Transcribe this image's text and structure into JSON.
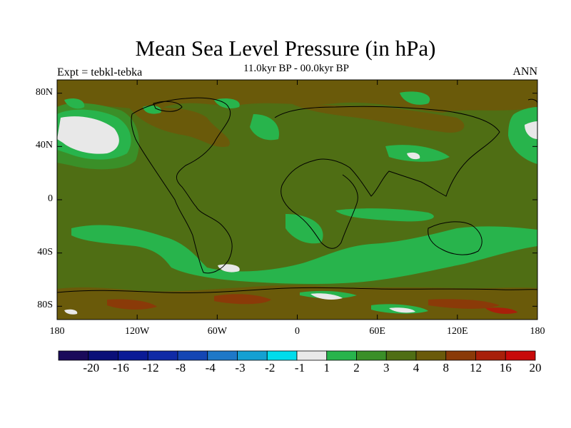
{
  "title": "Mean Sea Level Pressure (in hPa)",
  "subtitle": "11.0kyr BP - 00.0kyr BP",
  "left_label": "Expt = tebkl-tebka",
  "right_label": "ANN",
  "map": {
    "lat_ticks": [
      "80N",
      "40N",
      "0",
      "40S",
      "80S"
    ],
    "lat_values": [
      80,
      40,
      0,
      -40,
      -80
    ],
    "lon_ticks": [
      "180",
      "120W",
      "60W",
      "0",
      "60E",
      "120E",
      "180"
    ],
    "lon_values": [
      -180,
      -120,
      -60,
      0,
      60,
      120,
      180
    ],
    "lat_range": [
      -90,
      90
    ],
    "lon_range": [
      -180,
      180
    ],
    "projection": "cylindrical-equidistant"
  },
  "colorbar": {
    "labels": [
      "-20",
      "-16",
      "-12",
      "-8",
      "-4",
      "-3",
      "-2",
      "-1",
      "1",
      "2",
      "3",
      "4",
      "8",
      "12",
      "16",
      "20"
    ],
    "colors": [
      "#1a0a5a",
      "#0a0f78",
      "#0a1a96",
      "#0f2aa6",
      "#1446b4",
      "#1e78c8",
      "#14a0d2",
      "#00dcec",
      "#e8e8e8",
      "#28b44c",
      "#3a8f28",
      "#4f6e14",
      "#6a5a0a",
      "#8a3a08",
      "#a8200a",
      "#c80a0a"
    ]
  }
}
